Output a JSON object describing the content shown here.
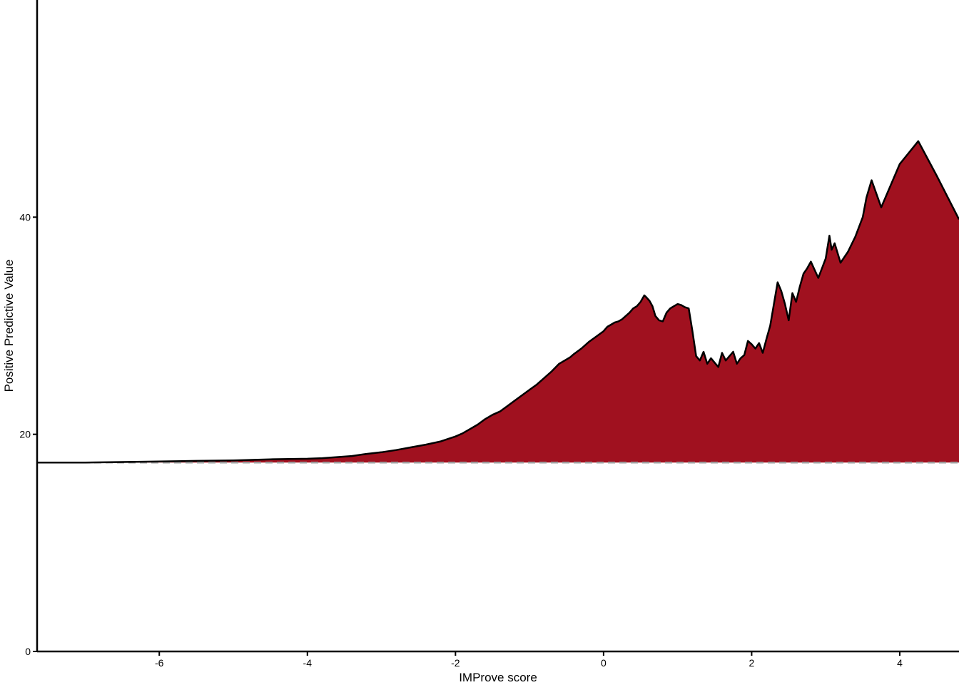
{
  "chart_data": {
    "type": "area",
    "title": "",
    "xlabel": "IMProve score",
    "ylabel": "Positive Predictive Value",
    "xlim": [
      -7.65,
      4.8
    ],
    "ylim": [
      0,
      60
    ],
    "x_ticks": [
      -6,
      -4,
      -2,
      0,
      2,
      4
    ],
    "x_tick_labels": [
      "-6",
      "-4",
      "-2",
      "0",
      "2",
      "4"
    ],
    "y_ticks": [
      0,
      20,
      40
    ],
    "y_tick_labels": [
      "0",
      "20",
      "40"
    ],
    "baseline": 17.4,
    "grid": false,
    "legend": "none",
    "colors": {
      "fill": "#A0111F",
      "line": "#000000",
      "baseline": "#9E9E9E",
      "axis": "#000000"
    },
    "series": [
      {
        "x": [
          -7.65,
          -7.0,
          -6.5,
          -6.0,
          -5.5,
          -5.0,
          -4.5,
          -4.0,
          -3.8,
          -3.6,
          -3.4,
          -3.2,
          -3.0,
          -2.8,
          -2.6,
          -2.4,
          -2.2,
          -2.0,
          -1.9,
          -1.8,
          -1.7,
          -1.6,
          -1.5,
          -1.4,
          -1.3,
          -1.2,
          -1.1,
          -1.0,
          -0.9,
          -0.8,
          -0.7,
          -0.6,
          -0.5,
          -0.45,
          -0.4,
          -0.3,
          -0.2,
          -0.1,
          0.0,
          0.05,
          0.1,
          0.15,
          0.2,
          0.25,
          0.3,
          0.35,
          0.4,
          0.45,
          0.5,
          0.55,
          0.58,
          0.62,
          0.66,
          0.7,
          0.75,
          0.8,
          0.85,
          0.9,
          0.95,
          1.0,
          1.05,
          1.1,
          1.15,
          1.2,
          1.25,
          1.3,
          1.35,
          1.4,
          1.45,
          1.5,
          1.55,
          1.6,
          1.65,
          1.7,
          1.75,
          1.8,
          1.85,
          1.9,
          1.95,
          2.0,
          2.05,
          2.1,
          2.15,
          2.2,
          2.25,
          2.3,
          2.35,
          2.4,
          2.45,
          2.5,
          2.55,
          2.6,
          2.65,
          2.7,
          2.75,
          2.8,
          2.9,
          2.95,
          3.0,
          3.05,
          3.08,
          3.12,
          3.2,
          3.3,
          3.4,
          3.5,
          3.55,
          3.62,
          3.75,
          4.0,
          4.25,
          4.5,
          4.8
        ],
        "y": [
          17.4,
          17.4,
          17.45,
          17.5,
          17.55,
          17.6,
          17.7,
          17.75,
          17.8,
          17.9,
          18.0,
          18.2,
          18.35,
          18.55,
          18.8,
          19.05,
          19.35,
          19.8,
          20.1,
          20.5,
          20.9,
          21.4,
          21.8,
          22.1,
          22.6,
          23.1,
          23.6,
          24.1,
          24.6,
          25.2,
          25.8,
          26.5,
          26.9,
          27.1,
          27.4,
          27.9,
          28.5,
          29.0,
          29.5,
          29.9,
          30.1,
          30.3,
          30.4,
          30.6,
          30.9,
          31.2,
          31.6,
          31.8,
          32.2,
          32.8,
          32.6,
          32.3,
          31.8,
          30.9,
          30.5,
          30.4,
          31.2,
          31.6,
          31.8,
          32.0,
          31.9,
          31.7,
          31.6,
          29.5,
          27.2,
          26.8,
          27.6,
          26.5,
          27.0,
          26.6,
          26.2,
          27.5,
          26.8,
          27.2,
          27.6,
          26.5,
          27.0,
          27.3,
          28.6,
          28.3,
          27.9,
          28.4,
          27.5,
          28.8,
          30.0,
          32.0,
          34.0,
          33.2,
          32.0,
          30.5,
          33.0,
          32.2,
          33.6,
          34.8,
          35.3,
          35.9,
          34.4,
          35.3,
          36.2,
          38.3,
          37.0,
          37.6,
          35.8,
          36.8,
          38.2,
          40.0,
          41.8,
          43.4,
          40.9,
          44.9,
          47.0,
          43.8,
          39.8
        ]
      }
    ]
  }
}
